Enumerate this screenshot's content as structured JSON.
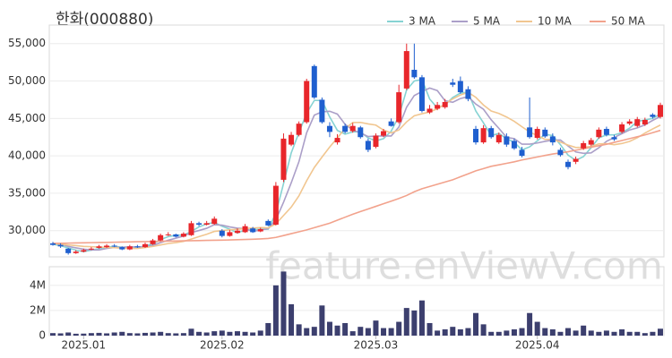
{
  "chart_data": {
    "type": "candlestick",
    "title": "한화(000880)",
    "watermark": "feature.enViewV.com",
    "up_color": "#e8262b",
    "down_color": "#1f5fcf",
    "volume_color": "#3c3f6e",
    "open": [
      28300,
      28100,
      27600,
      27000,
      27200,
      27500,
      27700,
      27800,
      28000,
      27800,
      27500,
      27900,
      27800,
      28200,
      28700,
      29400,
      29500,
      29200,
      29400,
      31000,
      30800,
      30900,
      30000,
      29300,
      29700,
      29800,
      30300,
      29900,
      31300,
      30800,
      36800,
      41500,
      42800,
      44500,
      52000,
      47500,
      44000,
      41800,
      44000,
      43300,
      43800,
      42000,
      41200,
      42700,
      44600,
      44500,
      49000,
      51500,
      50500,
      45800,
      46300,
      46500,
      49800,
      50000,
      48900,
      43600,
      41800,
      43700,
      41800,
      42600,
      42000,
      40800,
      43800,
      42400,
      43500,
      42600,
      40800,
      39200,
      39200,
      41000,
      41500,
      42500,
      43600,
      42500,
      43200,
      44300,
      44000,
      44200,
      45500,
      45200
    ],
    "high": [
      28500,
      28300,
      27700,
      27400,
      27600,
      27800,
      28100,
      28200,
      28200,
      27900,
      28100,
      28100,
      28400,
      28900,
      29600,
      29800,
      29600,
      29800,
      31300,
      31200,
      31300,
      31900,
      30200,
      30100,
      30300,
      30900,
      30500,
      30400,
      31500,
      36500,
      43000,
      43200,
      44600,
      50300,
      52200,
      47800,
      44500,
      42900,
      44300,
      44400,
      44000,
      42300,
      43000,
      43600,
      45000,
      49500,
      55000,
      55000,
      50800,
      46800,
      47200,
      47600,
      50300,
      50600,
      49300,
      44000,
      44100,
      44000,
      43100,
      43000,
      42300,
      41200,
      47800,
      43900,
      43800,
      43000,
      41100,
      39500,
      39900,
      42000,
      42400,
      43800,
      43900,
      42800,
      44500,
      44900,
      45200,
      45100,
      45700,
      47100
    ],
    "low": [
      28000,
      27700,
      26800,
      26900,
      27100,
      27400,
      27600,
      27700,
      27800,
      27400,
      27400,
      27700,
      27700,
      28100,
      28600,
      29300,
      29100,
      29100,
      29300,
      30600,
      30700,
      30800,
      29100,
      29200,
      29600,
      29700,
      29700,
      29800,
      30600,
      30700,
      36500,
      41300,
      42600,
      44300,
      47600,
      44300,
      42500,
      41500,
      43000,
      43100,
      42300,
      40500,
      41000,
      42500,
      43900,
      44300,
      48800,
      50300,
      45800,
      45600,
      46100,
      46300,
      49200,
      48300,
      47300,
      41500,
      41600,
      42300,
      41600,
      41200,
      40800,
      39800,
      42300,
      42200,
      42400,
      41400,
      39900,
      38200,
      38900,
      40800,
      41300,
      42300,
      42600,
      42000,
      43000,
      44100,
      43800,
      44000,
      45000,
      45000
    ],
    "close": [
      28100,
      27900,
      27000,
      27200,
      27400,
      27600,
      27900,
      28000,
      27900,
      27500,
      27900,
      27800,
      28200,
      28700,
      29400,
      29500,
      29200,
      29600,
      31000,
      30800,
      31000,
      31600,
      29300,
      29800,
      30000,
      30600,
      29800,
      30200,
      30700,
      36000,
      42300,
      42800,
      44300,
      50000,
      47800,
      44500,
      43200,
      42400,
      43200,
      44000,
      42500,
      40800,
      42700,
      43300,
      44000,
      48500,
      54000,
      50500,
      46000,
      46300,
      46800,
      47200,
      49500,
      48500,
      47600,
      41800,
      43700,
      42500,
      42800,
      41500,
      41000,
      40000,
      42500,
      43600,
      42600,
      41800,
      40100,
      38500,
      39600,
      41700,
      42100,
      43500,
      42800,
      42200,
      44200,
      44600,
      44900,
      44800,
      45200,
      46800
    ],
    "volume": [
      200000,
      180000,
      250000,
      150000,
      160000,
      200000,
      220000,
      180000,
      250000,
      300000,
      200000,
      180000,
      220000,
      250000,
      300000,
      200000,
      180000,
      200000,
      550000,
      300000,
      250000,
      350000,
      400000,
      300000,
      350000,
      300000,
      250000,
      400000,
      1000000,
      4000000,
      5100000,
      2500000,
      900000,
      600000,
      700000,
      2400000,
      1100000,
      800000,
      1000000,
      350000,
      700000,
      600000,
      1200000,
      600000,
      600000,
      1100000,
      2200000,
      2000000,
      2800000,
      1000000,
      400000,
      500000,
      700000,
      500000,
      600000,
      1800000,
      900000,
      300000,
      300000,
      400000,
      500000,
      600000,
      1800000,
      1100000,
      600000,
      500000,
      300000,
      600000,
      400000,
      800000,
      400000,
      300000,
      400000,
      300000,
      500000,
      300000,
      300000,
      200000,
      300000,
      550000
    ],
    "series": [
      {
        "name": "3 MA",
        "color": "#86d3d3",
        "values": [
          28200,
          28000,
          27700,
          27400,
          27200,
          27400,
          27600,
          27800,
          27900,
          27800,
          27800,
          27700,
          28000,
          28200,
          28800,
          29200,
          29400,
          29400,
          29900,
          30500,
          30900,
          31100,
          30600,
          30200,
          29700,
          30100,
          30100,
          30200,
          30200,
          32300,
          36300,
          40400,
          43100,
          45700,
          47400,
          47400,
          45200,
          43400,
          42900,
          43200,
          43200,
          42400,
          42000,
          42300,
          43300,
          45300,
          48800,
          50000,
          50200,
          47600,
          46400,
          46800,
          47800,
          48400,
          48500,
          46000,
          44400,
          42700,
          43000,
          42300,
          41800,
          40800,
          41200,
          42000,
          42900,
          42700,
          41500,
          40100,
          39400,
          39900,
          41100,
          42400,
          42800,
          42800,
          43100,
          43700,
          44600,
          44800,
          45000,
          45600
        ]
      },
      {
        "name": "5 MA",
        "color": "#ab9fc8",
        "values": [
          28300,
          28200,
          27900,
          27700,
          27520,
          27420,
          27420,
          27620,
          27760,
          27780,
          27840,
          27820,
          27860,
          28020,
          28400,
          28720,
          29000,
          29280,
          29740,
          30020,
          30320,
          30800,
          30740,
          30500,
          30340,
          30260,
          29900,
          30080,
          30260,
          31460,
          33800,
          36400,
          39220,
          43080,
          45440,
          45880,
          45960,
          45580,
          44220,
          43460,
          43060,
          42580,
          42640,
          42660,
          42660,
          43860,
          46500,
          48060,
          48600,
          49060,
          48720,
          47360,
          47160,
          47660,
          47920,
          46920,
          46220,
          44820,
          43680,
          42460,
          42300,
          41560,
          41560,
          41720,
          41940,
          42100,
          42120,
          41320,
          40520,
          40340,
          40400,
          41080,
          41940,
          42460,
          42960,
          43460,
          43740,
          44140,
          44740,
          45260
        ]
      },
      {
        "name": "10 MA",
        "color": "#f1c690",
        "values": [
          28300,
          28200,
          28100,
          28000,
          27900,
          27860,
          27810,
          27760,
          27730,
          27650,
          27630,
          27620,
          27740,
          27890,
          28090,
          28280,
          28410,
          28570,
          28880,
          29210,
          29520,
          29900,
          30010,
          30120,
          30180,
          30290,
          30350,
          30410,
          30380,
          30900,
          32030,
          33150,
          34650,
          36670,
          38450,
          39840,
          41180,
          42400,
          43650,
          44450,
          44470,
          44270,
          44110,
          43440,
          43060,
          43460,
          44540,
          45350,
          45630,
          45860,
          46290,
          46930,
          47610,
          48130,
          48490,
          47820,
          46790,
          45990,
          45670,
          45190,
          44610,
          43890,
          43190,
          42700,
          42200,
          42200,
          41840,
          41440,
          41120,
          41140,
          41250,
          41600,
          41630,
          41490,
          41650,
          41930,
          42410,
          43040,
          43600,
          44110
        ]
      },
      {
        "name": "50 MA",
        "color": "#f2a28c",
        "values": [
          28300,
          28320,
          28340,
          28360,
          28380,
          28400,
          28420,
          28440,
          28460,
          28480,
          28500,
          28520,
          28540,
          28560,
          28580,
          28600,
          28620,
          28640,
          28660,
          28680,
          28700,
          28720,
          28740,
          28760,
          28790,
          28820,
          28860,
          28900,
          28960,
          29100,
          29350,
          29600,
          29850,
          30100,
          30400,
          30700,
          31000,
          31400,
          31800,
          32200,
          32550,
          32900,
          33250,
          33600,
          33950,
          34300,
          34700,
          35200,
          35600,
          35900,
          36200,
          36500,
          36800,
          37200,
          37600,
          38000,
          38300,
          38600,
          38800,
          39000,
          39200,
          39450,
          39650,
          39850,
          40050,
          40250,
          40400,
          40550,
          40750,
          40950,
          41150,
          41350,
          41550,
          41800,
          42050,
          42300,
          42550,
          42800,
          43100,
          43400
        ]
      }
    ],
    "ylim": [
      26500,
      57000
    ],
    "yticks": [
      {
        "value": 30000,
        "label": "30,000"
      },
      {
        "value": 35000,
        "label": "35,000"
      },
      {
        "value": 40000,
        "label": "40,000"
      },
      {
        "value": 45000,
        "label": "45,000"
      },
      {
        "value": 50000,
        "label": "50,000"
      },
      {
        "value": 55000,
        "label": "55,000"
      }
    ],
    "volume_ylim": [
      0,
      5200000
    ],
    "volume_yticks": [
      0,
      {
        "value": 2000000,
        "label": "2M"
      },
      {
        "value": 4000000,
        "label": "4M"
      }
    ],
    "xticks": [
      {
        "value": 4,
        "label": "2025.01"
      },
      {
        "value": 22,
        "label": "2025.02"
      },
      {
        "value": 42,
        "label": "2025.03"
      },
      {
        "value": 63,
        "label": "2025.04"
      }
    ],
    "legend": "top-right",
    "grid": true
  }
}
